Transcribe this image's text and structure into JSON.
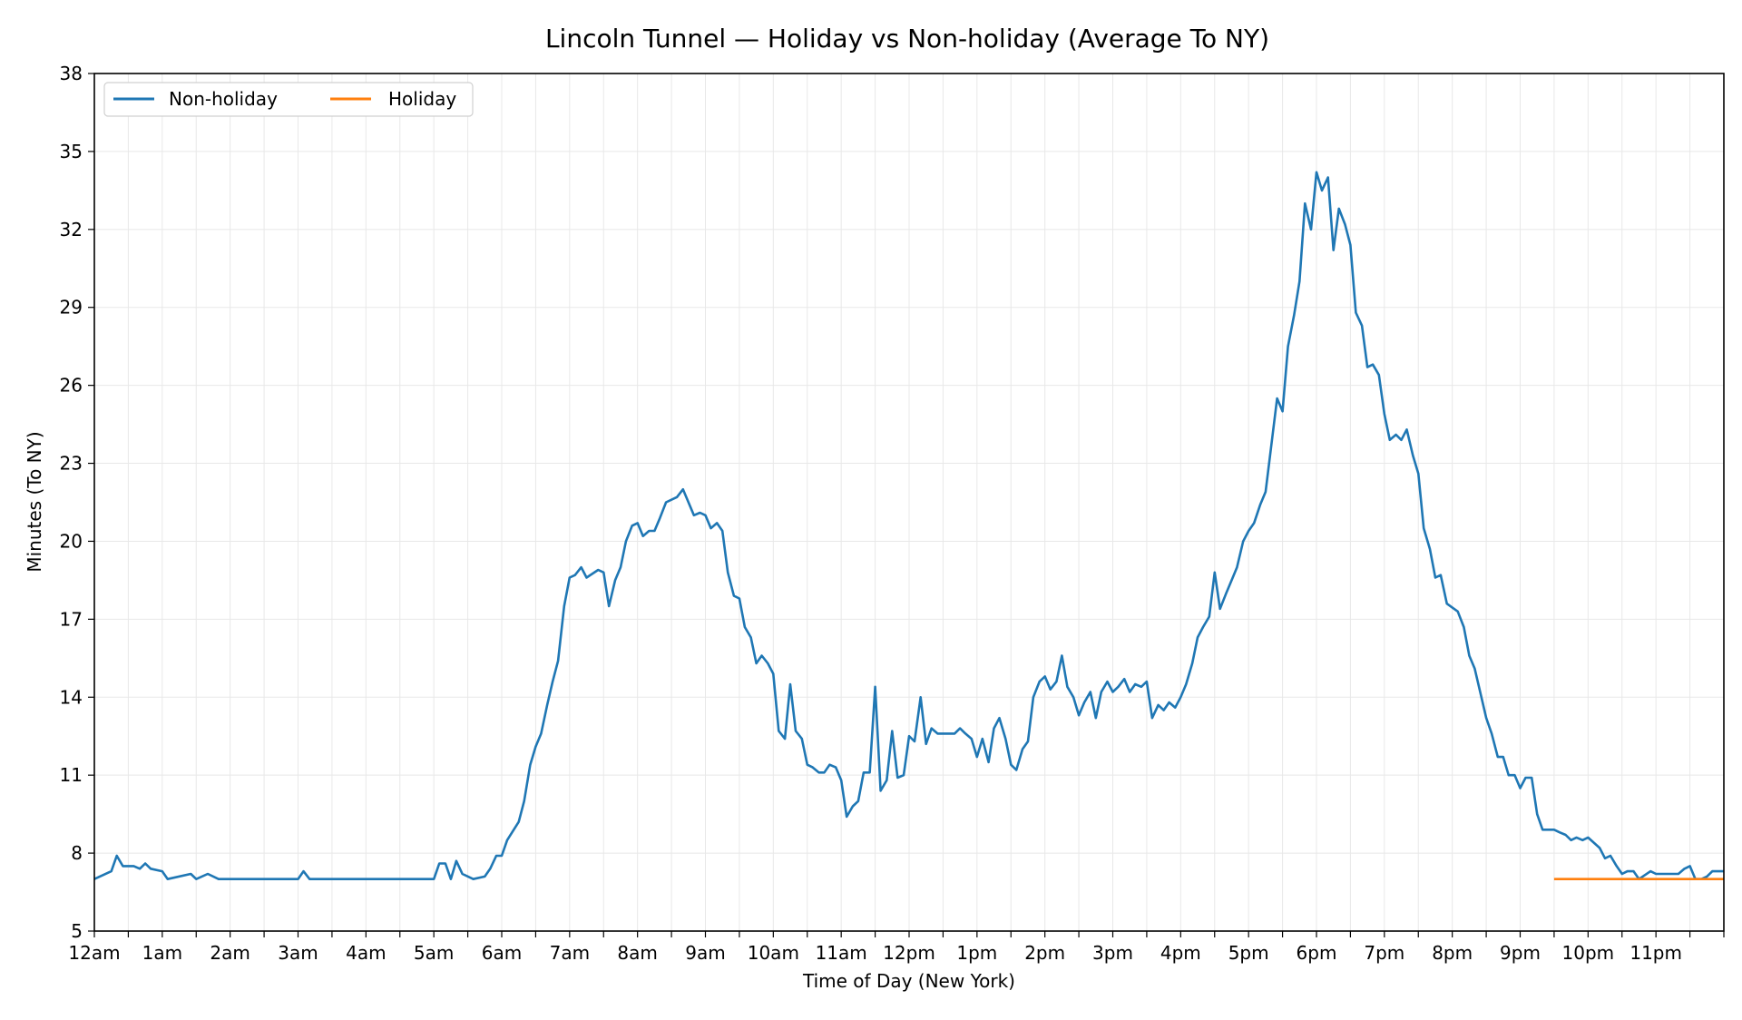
{
  "chart_data": {
    "type": "line",
    "title": "Lincoln Tunnel — Holiday vs Non-holiday (Average To NY)",
    "xlabel": "Time of Day (New York)",
    "ylabel": "Minutes (To NY)",
    "x_unit": "hours since midnight",
    "xlim": [
      0,
      24
    ],
    "ylim": [
      5,
      38
    ],
    "x_tick_labels": [
      "12am",
      "1am",
      "2am",
      "3am",
      "4am",
      "5am",
      "6am",
      "7am",
      "8am",
      "9am",
      "10am",
      "11am",
      "12pm",
      "1pm",
      "2pm",
      "3pm",
      "4pm",
      "5pm",
      "6pm",
      "7pm",
      "8pm",
      "9pm",
      "10pm",
      "11pm"
    ],
    "y_ticks": [
      5,
      8,
      11,
      14,
      17,
      20,
      23,
      26,
      29,
      32,
      35,
      38
    ],
    "grid": true,
    "legend_position": "top-left",
    "series": [
      {
        "name": "Non-holiday",
        "color": "#1f77b4",
        "points": [
          [
            0.0,
            7.0
          ],
          [
            0.25,
            7.3
          ],
          [
            0.33,
            7.9
          ],
          [
            0.42,
            7.5
          ],
          [
            0.58,
            7.5
          ],
          [
            0.67,
            7.4
          ],
          [
            0.75,
            7.6
          ],
          [
            0.83,
            7.4
          ],
          [
            1.0,
            7.3
          ],
          [
            1.08,
            7.0
          ],
          [
            1.42,
            7.2
          ],
          [
            1.5,
            7.0
          ],
          [
            1.67,
            7.2
          ],
          [
            1.83,
            7.0
          ],
          [
            3.0,
            7.0
          ],
          [
            3.08,
            7.3
          ],
          [
            3.17,
            7.0
          ],
          [
            5.0,
            7.0
          ],
          [
            5.08,
            7.6
          ],
          [
            5.17,
            7.6
          ],
          [
            5.25,
            7.0
          ],
          [
            5.33,
            7.7
          ],
          [
            5.42,
            7.2
          ],
          [
            5.58,
            7.0
          ],
          [
            5.75,
            7.1
          ],
          [
            5.83,
            7.4
          ],
          [
            5.92,
            7.9
          ],
          [
            6.0,
            7.9
          ],
          [
            6.08,
            8.5
          ],
          [
            6.25,
            9.2
          ],
          [
            6.33,
            10.0
          ],
          [
            6.42,
            11.4
          ],
          [
            6.5,
            12.1
          ],
          [
            6.58,
            12.6
          ],
          [
            6.67,
            13.7
          ],
          [
            6.75,
            14.6
          ],
          [
            6.83,
            15.4
          ],
          [
            6.92,
            17.5
          ],
          [
            7.0,
            18.6
          ],
          [
            7.08,
            18.7
          ],
          [
            7.17,
            19.0
          ],
          [
            7.25,
            18.6
          ],
          [
            7.42,
            18.9
          ],
          [
            7.5,
            18.8
          ],
          [
            7.58,
            17.5
          ],
          [
            7.67,
            18.5
          ],
          [
            7.75,
            19.0
          ],
          [
            7.83,
            20.0
          ],
          [
            7.92,
            20.6
          ],
          [
            8.0,
            20.7
          ],
          [
            8.08,
            20.2
          ],
          [
            8.17,
            20.4
          ],
          [
            8.25,
            20.4
          ],
          [
            8.33,
            20.9
          ],
          [
            8.42,
            21.5
          ],
          [
            8.58,
            21.7
          ],
          [
            8.67,
            22.0
          ],
          [
            8.75,
            21.5
          ],
          [
            8.83,
            21.0
          ],
          [
            8.92,
            21.1
          ],
          [
            9.0,
            21.0
          ],
          [
            9.08,
            20.5
          ],
          [
            9.17,
            20.7
          ],
          [
            9.25,
            20.4
          ],
          [
            9.33,
            18.8
          ],
          [
            9.42,
            17.9
          ],
          [
            9.5,
            17.8
          ],
          [
            9.58,
            16.7
          ],
          [
            9.67,
            16.3
          ],
          [
            9.75,
            15.3
          ],
          [
            9.83,
            15.6
          ],
          [
            9.92,
            15.3
          ],
          [
            10.0,
            14.9
          ],
          [
            10.08,
            12.7
          ],
          [
            10.17,
            12.4
          ],
          [
            10.25,
            14.5
          ],
          [
            10.33,
            12.7
          ],
          [
            10.42,
            12.4
          ],
          [
            10.5,
            11.4
          ],
          [
            10.58,
            11.3
          ],
          [
            10.67,
            11.1
          ],
          [
            10.75,
            11.1
          ],
          [
            10.83,
            11.4
          ],
          [
            10.92,
            11.3
          ],
          [
            11.0,
            10.8
          ],
          [
            11.08,
            9.4
          ],
          [
            11.17,
            9.8
          ],
          [
            11.25,
            10.0
          ],
          [
            11.33,
            11.1
          ],
          [
            11.42,
            11.1
          ],
          [
            11.5,
            14.4
          ],
          [
            11.58,
            10.4
          ],
          [
            11.67,
            10.8
          ],
          [
            11.75,
            12.7
          ],
          [
            11.83,
            10.9
          ],
          [
            11.92,
            11.0
          ],
          [
            12.0,
            12.5
          ],
          [
            12.08,
            12.3
          ],
          [
            12.17,
            14.0
          ],
          [
            12.25,
            12.2
          ],
          [
            12.33,
            12.8
          ],
          [
            12.42,
            12.6
          ],
          [
            12.67,
            12.6
          ],
          [
            12.75,
            12.8
          ],
          [
            12.83,
            12.6
          ],
          [
            12.92,
            12.4
          ],
          [
            13.0,
            11.7
          ],
          [
            13.08,
            12.4
          ],
          [
            13.17,
            11.5
          ],
          [
            13.25,
            12.8
          ],
          [
            13.33,
            13.2
          ],
          [
            13.42,
            12.4
          ],
          [
            13.5,
            11.4
          ],
          [
            13.58,
            11.2
          ],
          [
            13.67,
            12.0
          ],
          [
            13.75,
            12.3
          ],
          [
            13.83,
            14.0
          ],
          [
            13.92,
            14.6
          ],
          [
            14.0,
            14.8
          ],
          [
            14.08,
            14.3
          ],
          [
            14.17,
            14.6
          ],
          [
            14.25,
            15.6
          ],
          [
            14.33,
            14.4
          ],
          [
            14.42,
            14.0
          ],
          [
            14.5,
            13.3
          ],
          [
            14.58,
            13.8
          ],
          [
            14.67,
            14.2
          ],
          [
            14.75,
            13.2
          ],
          [
            14.83,
            14.2
          ],
          [
            14.92,
            14.6
          ],
          [
            15.0,
            14.2
          ],
          [
            15.08,
            14.4
          ],
          [
            15.17,
            14.7
          ],
          [
            15.25,
            14.2
          ],
          [
            15.33,
            14.5
          ],
          [
            15.42,
            14.4
          ],
          [
            15.5,
            14.6
          ],
          [
            15.58,
            13.2
          ],
          [
            15.67,
            13.7
          ],
          [
            15.75,
            13.5
          ],
          [
            15.83,
            13.8
          ],
          [
            15.92,
            13.6
          ],
          [
            16.0,
            14.0
          ],
          [
            16.08,
            14.5
          ],
          [
            16.17,
            15.3
          ],
          [
            16.25,
            16.3
          ],
          [
            16.33,
            16.7
          ],
          [
            16.42,
            17.1
          ],
          [
            16.5,
            18.8
          ],
          [
            16.58,
            17.4
          ],
          [
            16.67,
            18.0
          ],
          [
            16.75,
            18.5
          ],
          [
            16.83,
            19.0
          ],
          [
            16.92,
            20.0
          ],
          [
            17.0,
            20.4
          ],
          [
            17.08,
            20.7
          ],
          [
            17.17,
            21.4
          ],
          [
            17.25,
            21.9
          ],
          [
            17.33,
            23.6
          ],
          [
            17.42,
            25.5
          ],
          [
            17.5,
            25.0
          ],
          [
            17.58,
            27.5
          ],
          [
            17.67,
            28.7
          ],
          [
            17.75,
            30.0
          ],
          [
            17.83,
            33.0
          ],
          [
            17.92,
            32.0
          ],
          [
            18.0,
            34.2
          ],
          [
            18.08,
            33.5
          ],
          [
            18.17,
            34.0
          ],
          [
            18.25,
            31.2
          ],
          [
            18.33,
            32.8
          ],
          [
            18.42,
            32.2
          ],
          [
            18.5,
            31.4
          ],
          [
            18.58,
            28.8
          ],
          [
            18.67,
            28.3
          ],
          [
            18.75,
            26.7
          ],
          [
            18.83,
            26.8
          ],
          [
            18.92,
            26.4
          ],
          [
            19.0,
            24.9
          ],
          [
            19.08,
            23.9
          ],
          [
            19.17,
            24.1
          ],
          [
            19.25,
            23.9
          ],
          [
            19.33,
            24.3
          ],
          [
            19.42,
            23.3
          ],
          [
            19.5,
            22.6
          ],
          [
            19.58,
            20.5
          ],
          [
            19.67,
            19.7
          ],
          [
            19.75,
            18.6
          ],
          [
            19.83,
            18.7
          ],
          [
            19.92,
            17.6
          ],
          [
            20.08,
            17.3
          ],
          [
            20.17,
            16.7
          ],
          [
            20.25,
            15.6
          ],
          [
            20.33,
            15.1
          ],
          [
            20.42,
            14.1
          ],
          [
            20.5,
            13.2
          ],
          [
            20.58,
            12.6
          ],
          [
            20.67,
            11.7
          ],
          [
            20.75,
            11.7
          ],
          [
            20.83,
            11.0
          ],
          [
            20.92,
            11.0
          ],
          [
            21.0,
            10.5
          ],
          [
            21.08,
            10.9
          ],
          [
            21.17,
            10.9
          ],
          [
            21.25,
            9.5
          ],
          [
            21.33,
            8.9
          ],
          [
            21.5,
            8.9
          ],
          [
            21.58,
            8.8
          ],
          [
            21.67,
            8.7
          ],
          [
            21.75,
            8.5
          ],
          [
            21.83,
            8.6
          ],
          [
            21.92,
            8.5
          ],
          [
            22.0,
            8.6
          ],
          [
            22.17,
            8.2
          ],
          [
            22.25,
            7.8
          ],
          [
            22.33,
            7.9
          ],
          [
            22.42,
            7.5
          ],
          [
            22.5,
            7.2
          ],
          [
            22.58,
            7.3
          ],
          [
            22.67,
            7.3
          ],
          [
            22.75,
            7.0
          ],
          [
            22.92,
            7.3
          ],
          [
            23.0,
            7.2
          ],
          [
            23.25,
            7.2
          ],
          [
            23.33,
            7.2
          ],
          [
            23.42,
            7.4
          ],
          [
            23.5,
            7.5
          ],
          [
            23.58,
            7.0
          ],
          [
            23.67,
            7.0
          ],
          [
            23.75,
            7.1
          ],
          [
            23.83,
            7.3
          ],
          [
            24.0,
            7.3
          ]
        ]
      },
      {
        "name": "Holiday",
        "color": "#ff7f0e",
        "points": [
          [
            21.5,
            7.0
          ],
          [
            24.0,
            7.0
          ]
        ]
      }
    ]
  }
}
